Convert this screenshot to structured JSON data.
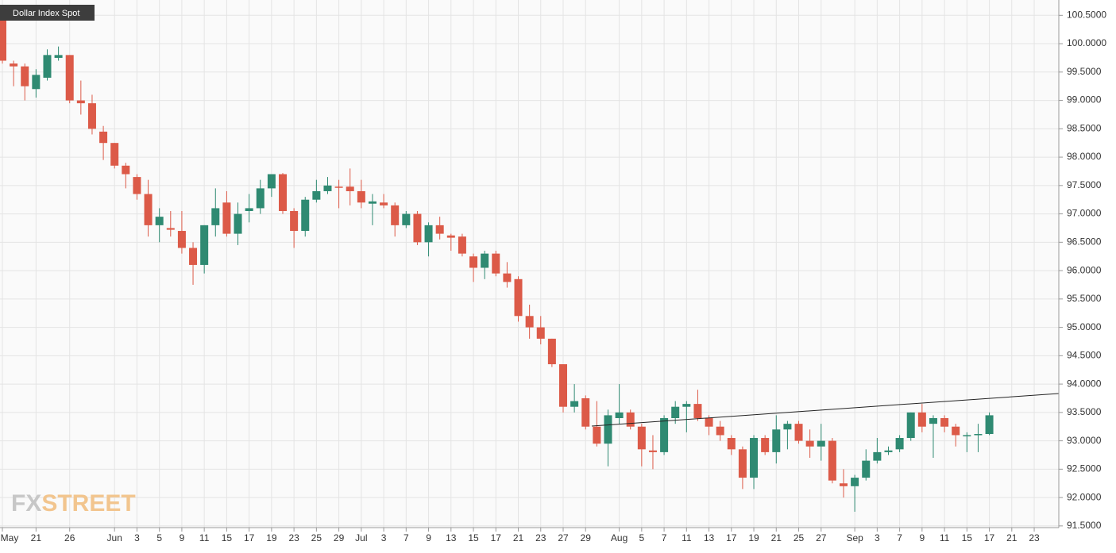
{
  "chart_data": {
    "type": "candlestick",
    "title": "Dollar Index Spot",
    "watermark": [
      "FX",
      "STREET"
    ],
    "up_color": "#2f8a72",
    "down_color": "#dc5a48",
    "grid": true,
    "categories": [
      "May",
      null,
      null,
      "21",
      null,
      null,
      "26",
      null,
      null,
      null,
      "Jun",
      null,
      "3",
      null,
      "5",
      null,
      "9",
      null,
      "11",
      null,
      "15",
      null,
      "17",
      null,
      "19",
      null,
      "23",
      null,
      "25",
      null,
      "29",
      null,
      "Jul",
      null,
      "3",
      null,
      "7",
      null,
      "9",
      null,
      "13",
      null,
      "15",
      null,
      "17",
      null,
      "21",
      null,
      "23",
      null,
      "27",
      null,
      "29",
      null,
      null,
      "Aug",
      null,
      "5",
      null,
      "7",
      null,
      "11",
      null,
      "13",
      null,
      "17",
      null,
      "19",
      null,
      "21",
      null,
      "25",
      null,
      "27",
      null,
      null,
      "Sep",
      null,
      "3",
      null,
      "7",
      null,
      "9",
      null,
      "11",
      null,
      "15",
      null,
      "17",
      null,
      "21",
      null,
      "23"
    ],
    "open": [
      100.45,
      99.65,
      99.6,
      99.2,
      99.4,
      99.75,
      99.8,
      99.0,
      98.95,
      98.45,
      98.25,
      97.85,
      97.65,
      97.35,
      96.8,
      96.75,
      96.7,
      96.4,
      96.1,
      96.8,
      97.2,
      96.65,
      97.05,
      97.1,
      97.45,
      97.7,
      97.05,
      96.7,
      97.25,
      97.4,
      97.48,
      97.48,
      97.4,
      97.18,
      97.2,
      97.15,
      96.8,
      97.0,
      96.5,
      96.8,
      96.62,
      96.6,
      96.25,
      96.05,
      96.3,
      95.95,
      95.85,
      95.2,
      95.0,
      94.8,
      94.35,
      93.6,
      93.75,
      93.25,
      92.95,
      93.4,
      93.5,
      93.25,
      92.83,
      92.8,
      93.4,
      93.6,
      93.65,
      93.4,
      93.25,
      93.05,
      92.85,
      92.35,
      93.05,
      92.8,
      93.2,
      93.3,
      93.0,
      92.9,
      93.0,
      92.25,
      92.2,
      92.35,
      92.65,
      92.8,
      92.85,
      93.05,
      93.5,
      93.3,
      93.4,
      93.25,
      93.08,
      93.1,
      93.12,
      null,
      null,
      null,
      null
    ],
    "high": [
      100.5,
      99.7,
      99.65,
      99.55,
      99.9,
      99.95,
      99.8,
      99.35,
      99.1,
      98.55,
      98.25,
      97.9,
      97.7,
      97.6,
      97.1,
      97.05,
      97.05,
      96.5,
      96.8,
      97.45,
      97.4,
      97.2,
      97.35,
      97.6,
      97.7,
      97.72,
      97.1,
      97.3,
      97.6,
      97.65,
      97.6,
      97.8,
      97.6,
      97.35,
      97.35,
      97.2,
      97.05,
      97.05,
      96.85,
      96.95,
      96.65,
      96.65,
      96.3,
      96.35,
      96.35,
      96.15,
      95.9,
      95.4,
      95.2,
      94.8,
      94.35,
      94.0,
      93.8,
      93.7,
      93.55,
      94.0,
      93.55,
      93.3,
      93.1,
      93.45,
      93.7,
      93.7,
      93.9,
      93.45,
      93.35,
      93.1,
      92.9,
      93.1,
      93.1,
      93.45,
      93.35,
      93.35,
      93.2,
      93.3,
      93.05,
      92.5,
      92.4,
      92.85,
      93.05,
      92.9,
      93.1,
      93.5,
      93.65,
      93.45,
      93.45,
      93.3,
      93.15,
      93.3,
      93.5,
      null,
      null,
      null,
      null
    ],
    "low": [
      99.65,
      99.25,
      99.0,
      99.05,
      99.35,
      99.7,
      98.95,
      98.75,
      98.4,
      97.95,
      97.8,
      97.45,
      97.25,
      96.6,
      96.5,
      96.6,
      96.3,
      95.75,
      95.95,
      96.6,
      96.6,
      96.45,
      96.85,
      97.0,
      97.3,
      97.0,
      96.4,
      96.6,
      97.2,
      97.35,
      97.1,
      97.15,
      97.1,
      96.8,
      97.1,
      96.6,
      96.75,
      96.45,
      96.25,
      96.55,
      96.35,
      96.25,
      95.8,
      95.85,
      95.9,
      95.7,
      95.1,
      94.8,
      94.7,
      94.3,
      93.5,
      93.5,
      93.2,
      92.9,
      92.55,
      93.3,
      93.2,
      92.55,
      92.5,
      92.75,
      93.3,
      93.15,
      93.35,
      93.1,
      93.0,
      92.75,
      92.15,
      92.15,
      92.75,
      92.6,
      92.85,
      92.95,
      92.7,
      92.65,
      92.25,
      92.0,
      91.75,
      92.3,
      92.6,
      92.75,
      92.8,
      93.0,
      93.15,
      92.7,
      93.15,
      92.9,
      92.8,
      92.8,
      93.1,
      null,
      null,
      null,
      null
    ],
    "close": [
      99.7,
      99.6,
      99.25,
      99.45,
      99.8,
      99.8,
      99.0,
      98.95,
      98.5,
      98.25,
      97.85,
      97.7,
      97.35,
      96.8,
      96.95,
      96.72,
      96.4,
      96.1,
      96.8,
      97.1,
      96.65,
      97.0,
      97.1,
      97.45,
      97.7,
      97.05,
      96.7,
      97.25,
      97.4,
      97.5,
      97.46,
      97.4,
      97.2,
      97.22,
      97.15,
      96.8,
      97.0,
      96.5,
      96.8,
      96.65,
      96.58,
      96.3,
      96.05,
      96.3,
      95.95,
      95.8,
      95.2,
      95.0,
      94.8,
      94.35,
      93.6,
      93.7,
      93.25,
      92.95,
      93.45,
      93.5,
      93.25,
      92.85,
      92.8,
      93.4,
      93.6,
      93.65,
      93.4,
      93.25,
      93.1,
      92.85,
      92.35,
      93.05,
      92.8,
      93.2,
      93.3,
      93.0,
      92.9,
      93.0,
      92.3,
      92.2,
      92.35,
      92.65,
      92.8,
      92.83,
      93.05,
      93.5,
      93.25,
      93.4,
      93.25,
      93.1,
      93.1,
      93.12,
      93.45,
      null,
      null,
      null,
      null
    ],
    "ylim": [
      91.47,
      100.77
    ],
    "yticks": [
      {
        "value": 91.5,
        "label": "91.5000"
      },
      {
        "value": 92,
        "label": "92.0000"
      },
      {
        "value": 92.5,
        "label": "92.5000"
      },
      {
        "value": 93,
        "label": "93.0000"
      },
      {
        "value": 93.5,
        "label": "93.5000"
      },
      {
        "value": 94,
        "label": "94.0000"
      },
      {
        "value": 94.5,
        "label": "94.5000"
      },
      {
        "value": 95,
        "label": "95.0000"
      },
      {
        "value": 95.5,
        "label": "95.5000"
      },
      {
        "value": 96,
        "label": "96.0000"
      },
      {
        "value": 96.5,
        "label": "96.5000"
      },
      {
        "value": 97,
        "label": "97.0000"
      },
      {
        "value": 97.5,
        "label": "97.5000"
      },
      {
        "value": 98,
        "label": "98.0000"
      },
      {
        "value": 98.5,
        "label": "98.5000"
      },
      {
        "value": 99,
        "label": "99.0000"
      },
      {
        "value": 99.5,
        "label": "99.5000"
      },
      {
        "value": 100,
        "label": "100.0000"
      },
      {
        "value": 100.5,
        "label": "100.5000"
      }
    ]
  }
}
